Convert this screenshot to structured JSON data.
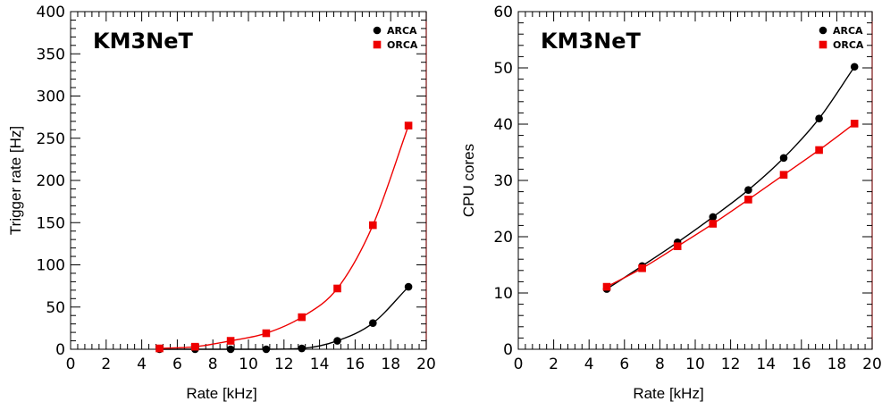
{
  "chart_data": [
    {
      "type": "line",
      "title": "KM3NeT",
      "xlabel": "Rate [kHz]",
      "ylabel": "Trigger rate [Hz]",
      "xlim": [
        0,
        20
      ],
      "ylim": [
        0,
        400
      ],
      "x_ticks": [
        0,
        2,
        4,
        6,
        8,
        10,
        12,
        14,
        16,
        18,
        20
      ],
      "y_ticks": [
        0,
        50,
        100,
        150,
        200,
        250,
        300,
        350,
        400
      ],
      "legend_position": "top-right",
      "grid": false,
      "series": [
        {
          "name": "ARCA",
          "marker": "circle",
          "color": "#000000",
          "x": [
            5,
            7,
            9,
            11,
            13,
            15,
            17,
            19
          ],
          "y": [
            0,
            0,
            0,
            0,
            1,
            10,
            31,
            74
          ]
        },
        {
          "name": "ORCA",
          "marker": "square",
          "color": "#ee0000",
          "x": [
            5,
            7,
            9,
            11,
            13,
            15,
            17,
            19
          ],
          "y": [
            1,
            3,
            10,
            19,
            38,
            72,
            147,
            265
          ]
        }
      ]
    },
    {
      "type": "line",
      "title": "KM3NeT",
      "xlabel": "Rate [kHz]",
      "ylabel": "CPU cores",
      "xlim": [
        0,
        20
      ],
      "ylim": [
        0,
        60
      ],
      "x_ticks": [
        0,
        2,
        4,
        6,
        8,
        10,
        12,
        14,
        16,
        18,
        20
      ],
      "y_ticks": [
        0,
        10,
        20,
        30,
        40,
        50,
        60
      ],
      "legend_position": "top-right",
      "grid": false,
      "series": [
        {
          "name": "ARCA",
          "marker": "circle",
          "color": "#000000",
          "x": [
            5,
            7,
            9,
            11,
            13,
            15,
            17,
            19
          ],
          "y": [
            10.7,
            14.8,
            19.0,
            23.5,
            28.3,
            34.0,
            41.0,
            50.2
          ]
        },
        {
          "name": "ORCA",
          "marker": "square",
          "color": "#ee0000",
          "x": [
            5,
            7,
            9,
            11,
            13,
            15,
            17,
            19
          ],
          "y": [
            11.1,
            14.4,
            18.3,
            22.3,
            26.6,
            31.0,
            35.4,
            40.1
          ]
        }
      ]
    }
  ]
}
